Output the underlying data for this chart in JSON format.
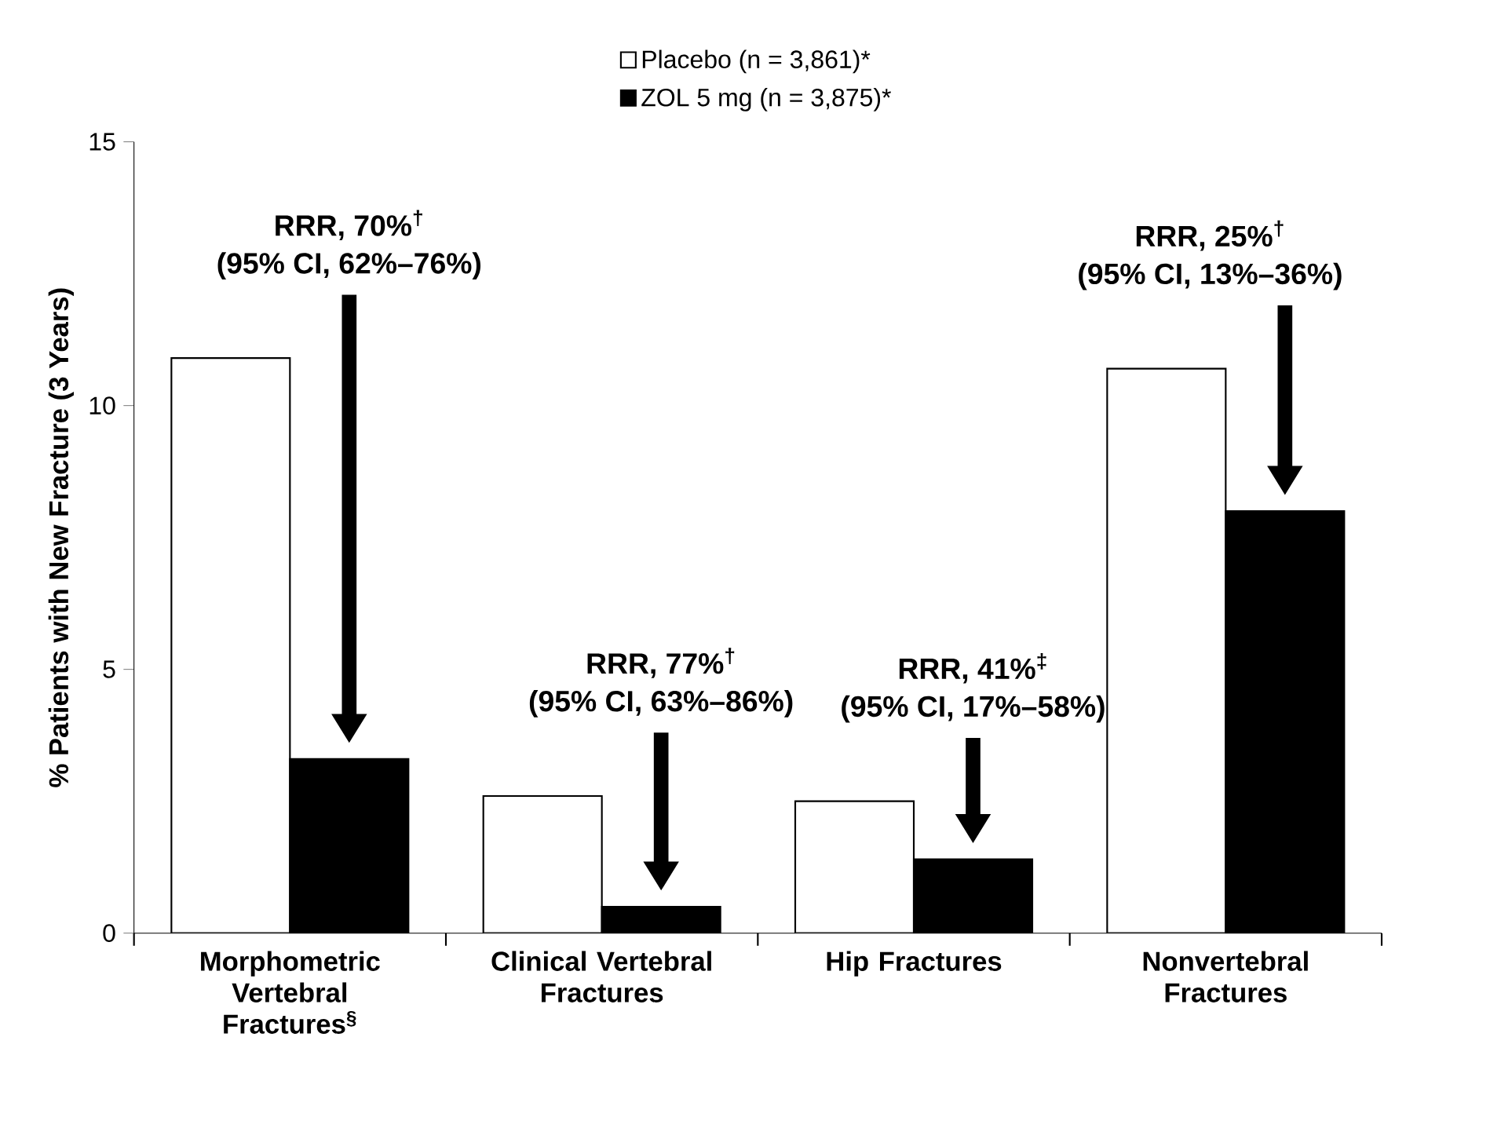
{
  "chart_data": {
    "type": "bar",
    "categories": [
      "Morphometric Vertebral Fractures$^{§}$",
      "Clinical Vertebral Fractures",
      "Hip Fractures",
      "Nonvertebral Fractures"
    ],
    "ylabel": "% Patients with New Fracture (3 Years)",
    "series": [
      {
        "name": "Placebo (n = 3,861)*",
        "color": "#ffffff",
        "values": [
          10.9,
          2.6,
          2.5,
          10.7
        ]
      },
      {
        "name": "ZOL 5 mg (n = 3,875)*",
        "color": "#000000",
        "values": [
          3.3,
          0.5,
          1.4,
          8.0
        ]
      }
    ],
    "ylim": [
      0,
      15
    ],
    "yticks": [
      0,
      5,
      10,
      15
    ],
    "legend": "top",
    "grid": false,
    "annotations": [
      "RRR, 70%$^{†}$",
      "(95% CI, 62%–76%)",
      "RRR, 77%$^{†}$",
      "(95% CI, 63%–86%)",
      "RRR, 41%$^{‡}$",
      "(95% CI, 17%–58%)",
      "RRR, 25%$^{†}$",
      "(95% CI, 13%–36%)"
    ]
  }
}
